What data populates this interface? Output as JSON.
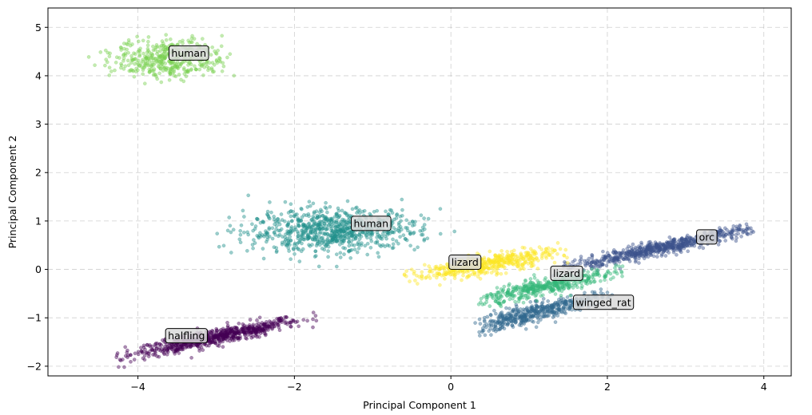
{
  "chart_data": {
    "type": "scatter",
    "xlabel": "Principal Component 1",
    "ylabel": "Principal Component 2",
    "xlim": [
      -5.15,
      4.35
    ],
    "ylim": [
      -2.2,
      5.4
    ],
    "xticks": [
      -4,
      -2,
      0,
      2,
      4
    ],
    "xtick_labels": [
      "−4",
      "−2",
      "0",
      "2",
      "4"
    ],
    "yticks": [
      -2,
      -1,
      0,
      1,
      2,
      3,
      4,
      5
    ],
    "ytick_labels": [
      "−2",
      "−1",
      "0",
      "1",
      "2",
      "3",
      "4",
      "5"
    ],
    "grid": true,
    "point_alpha": 0.45,
    "clusters": [
      {
        "color": "#440154",
        "center": [
          -3.0,
          -1.4
        ],
        "spread": [
          0.55,
          0.08
        ],
        "corr_slope": 0.33,
        "count": 700,
        "x_range": [
          -4.35,
          -1.7
        ]
      },
      {
        "color": "#3b528b",
        "center": [
          2.7,
          0.45
        ],
        "spread": [
          0.65,
          0.07
        ],
        "corr_slope": 0.33,
        "count": 700,
        "x_range": [
          1.3,
          3.9
        ]
      },
      {
        "color": "#21918c",
        "center": [
          -1.5,
          0.8
        ],
        "spread": [
          0.55,
          0.22
        ],
        "corr_slope": 0.05,
        "count": 800,
        "x_range": [
          -3.1,
          0.3
        ]
      },
      {
        "color": "#31688e",
        "center": [
          1.05,
          -0.9
        ],
        "spread": [
          0.45,
          0.1
        ],
        "corr_slope": 0.4,
        "count": 500,
        "x_range": [
          0.3,
          2.1
        ]
      },
      {
        "color": "#35b779",
        "center": [
          1.25,
          -0.35
        ],
        "spread": [
          0.45,
          0.09
        ],
        "corr_slope": 0.33,
        "count": 450,
        "x_range": [
          0.35,
          2.2
        ]
      },
      {
        "color": "#fde725",
        "center": [
          0.45,
          0.1
        ],
        "spread": [
          0.45,
          0.1
        ],
        "corr_slope": 0.25,
        "count": 500,
        "x_range": [
          -0.6,
          1.5
        ]
      },
      {
        "color": "#7ad151",
        "center": [
          -3.6,
          4.35
        ],
        "spread": [
          0.35,
          0.2
        ],
        "corr_slope": 0.0,
        "count": 420,
        "x_range": [
          -4.85,
          -2.55
        ]
      }
    ],
    "annotations": [
      {
        "text": "human",
        "x": -3.35,
        "y": 4.47
      },
      {
        "text": "human",
        "x": -1.02,
        "y": 0.95
      },
      {
        "text": "lizard",
        "x": 0.18,
        "y": 0.15
      },
      {
        "text": "orc",
        "x": 3.27,
        "y": 0.67
      },
      {
        "text": "lizard",
        "x": 1.48,
        "y": -0.08
      },
      {
        "text": "winged_rat",
        "x": 1.95,
        "y": -0.68
      },
      {
        "text": "halfling",
        "x": -3.38,
        "y": -1.37
      }
    ]
  }
}
